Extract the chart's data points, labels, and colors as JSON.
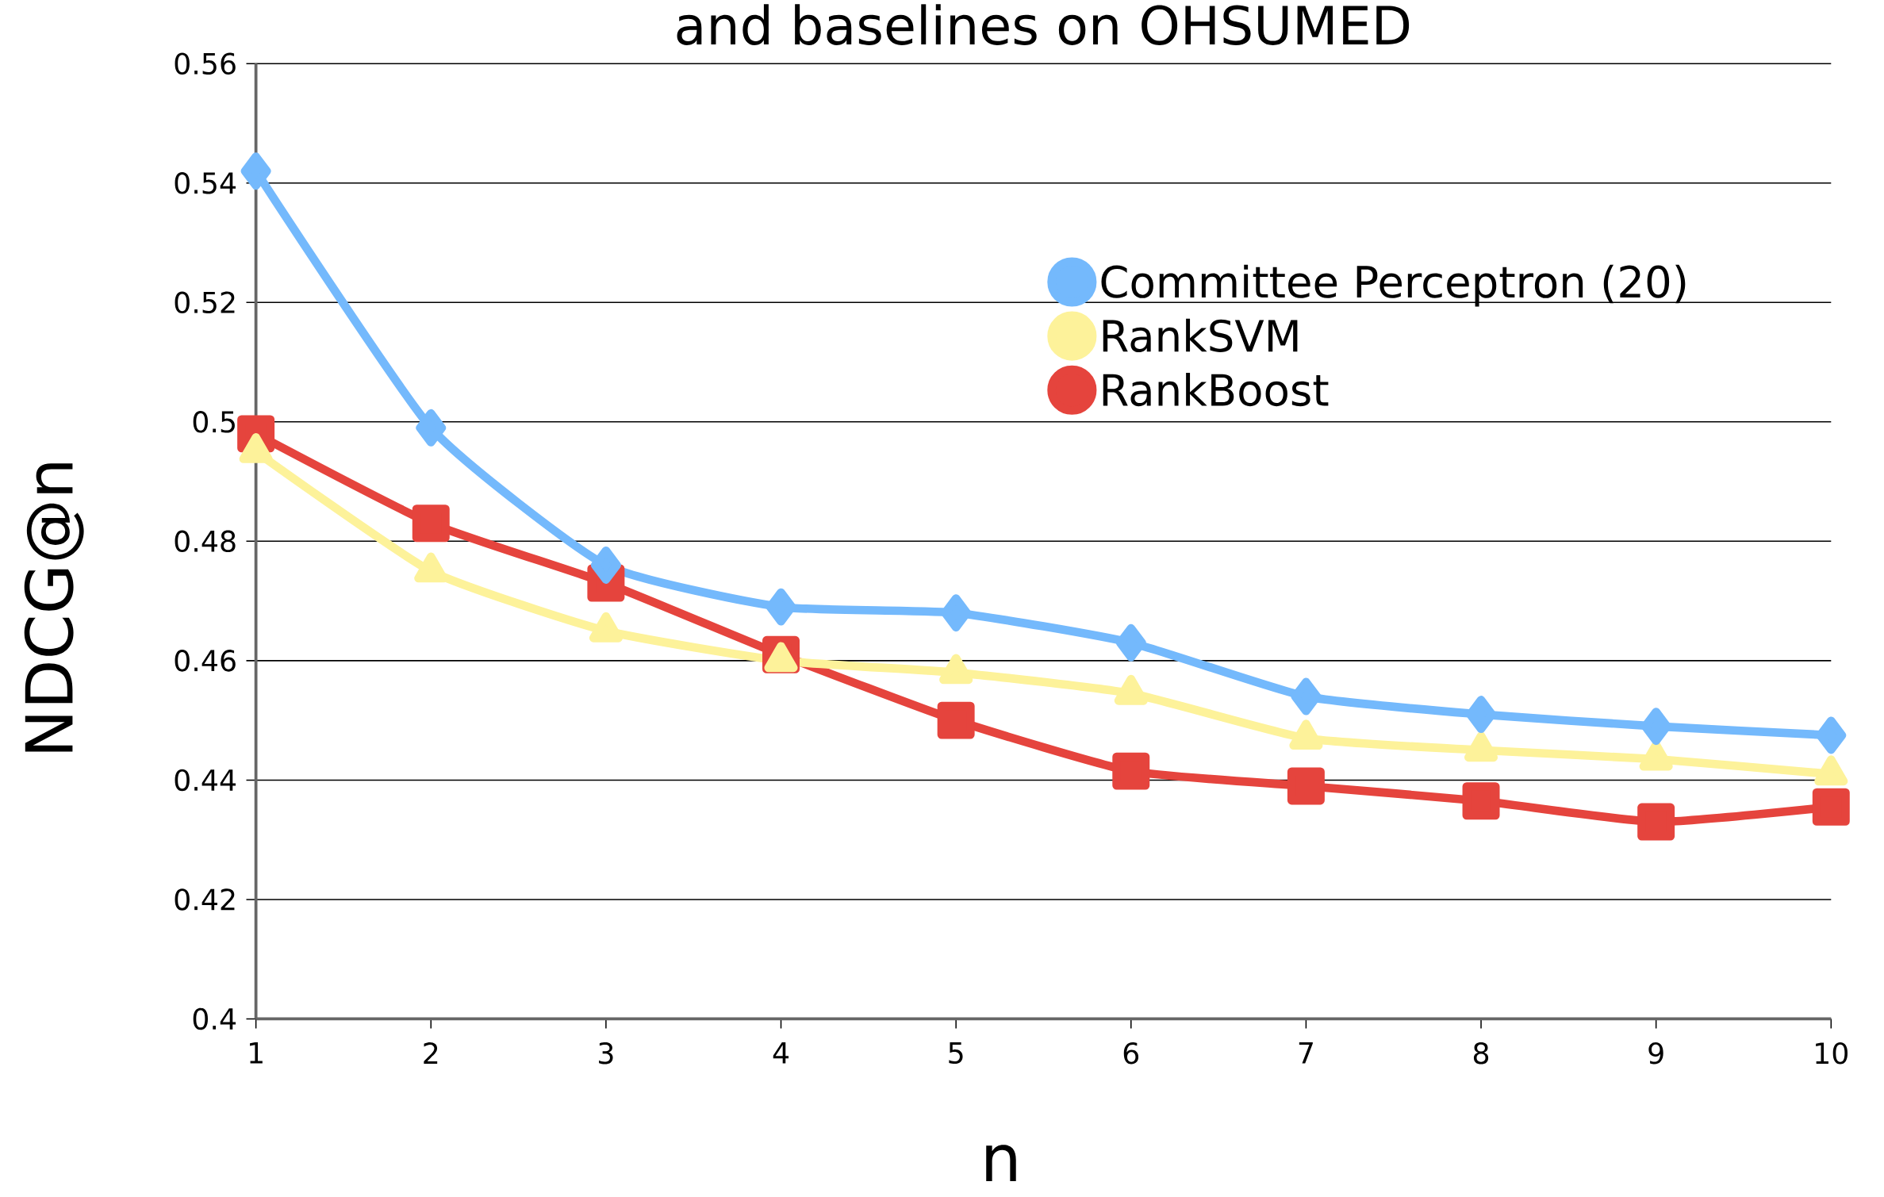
{
  "chart_data": {
    "type": "line",
    "title": "and baselines on OHSUMED",
    "xlabel": "n",
    "ylabel": "NDCG@n",
    "x": [
      1,
      2,
      3,
      4,
      5,
      6,
      7,
      8,
      9,
      10
    ],
    "series": [
      {
        "name": "Committee Perceptron (20)",
        "color": "#74b9fc",
        "marker": "diamond",
        "values": [
          0.542,
          0.499,
          0.476,
          0.469,
          0.468,
          0.463,
          0.454,
          0.451,
          0.449,
          0.4475
        ]
      },
      {
        "name": "RankSVM",
        "color": "#fdf29a",
        "marker": "triangle",
        "values": [
          0.495,
          0.475,
          0.465,
          0.46,
          0.458,
          0.4545,
          0.447,
          0.445,
          0.4435,
          0.441
        ]
      },
      {
        "name": "RankBoost",
        "color": "#e5443d",
        "marker": "square",
        "values": [
          0.498,
          0.483,
          0.473,
          0.461,
          0.45,
          0.4415,
          0.439,
          0.4365,
          0.433,
          0.4355
        ]
      }
    ],
    "xlim": [
      1,
      10
    ],
    "xticks": [
      1,
      2,
      3,
      4,
      5,
      6,
      7,
      8,
      9,
      10
    ],
    "ylim": [
      0.4,
      0.56
    ],
    "yticks": [
      0.4,
      0.42,
      0.44,
      0.46,
      0.48,
      0.5,
      0.52,
      0.54,
      0.56
    ],
    "grid": "y",
    "legend": "right",
    "line_style": "solid"
  }
}
